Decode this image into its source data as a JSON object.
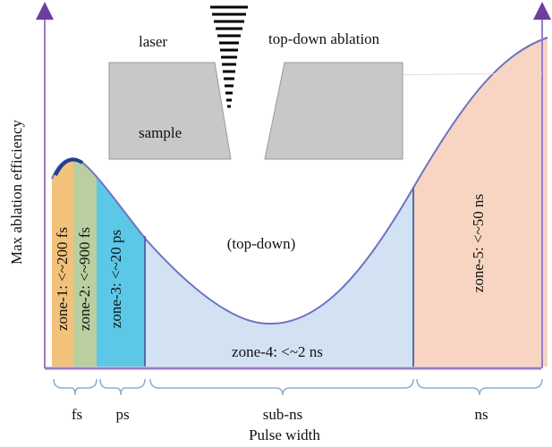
{
  "header": {
    "laser": "laser",
    "title": "top-down ablation",
    "sample": "sample"
  },
  "axes": {
    "y_label": "Max ablation efficiency",
    "x_label": "Pulse width"
  },
  "zones": [
    "zone-1: <~200 fs",
    "zone-2: <~900 fs",
    "zone-3: <~20 ps",
    "zone-4: <~2 ns",
    "zone-5: <~50 ns"
  ],
  "region_label": "(top-down)",
  "groups": [
    "fs",
    "ps",
    "sub-ns",
    "ns"
  ]
}
